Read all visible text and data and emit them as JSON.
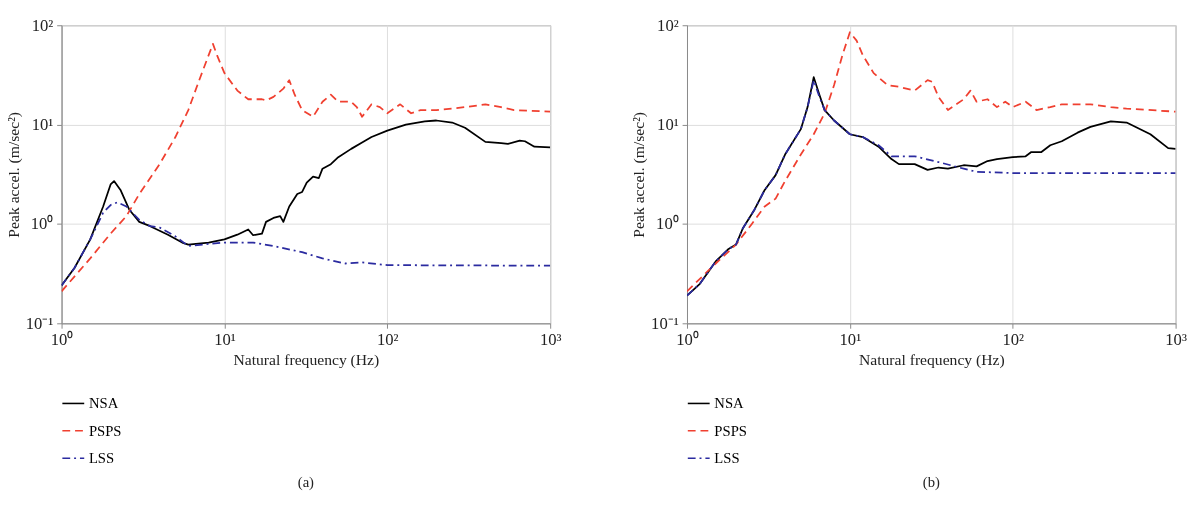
{
  "chart_data": [
    {
      "type": "line",
      "xlabel": "Natural frequency (Hz)",
      "ylabel": "Peak accel. (m/sec²)",
      "log": "xy",
      "grid": true,
      "legend": "bottom left",
      "annotations": [
        "(a)"
      ],
      "xlim": [
        1,
        1000
      ],
      "ylim": [
        0.1,
        100
      ],
      "xticks": [
        {
          "value": 1,
          "label": "10⁰"
        },
        {
          "value": 10,
          "label": "10¹"
        },
        {
          "value": 100,
          "label": "10²"
        },
        {
          "value": 1000,
          "label": "10³"
        }
      ],
      "yticks": [
        {
          "value": 0.1,
          "label": "10⁻¹"
        },
        {
          "value": 1,
          "label": "10⁰"
        },
        {
          "value": 10,
          "label": "10¹"
        },
        {
          "value": 100,
          "label": "10²"
        }
      ],
      "series": [
        {
          "name": "NSA",
          "color": "#000000",
          "line_style": "solid",
          "x": [
            1,
            1.2,
            1.5,
            1.8,
            2,
            2.1,
            2.3,
            2.6,
            3,
            3.5,
            4.5,
            5.5,
            6,
            8,
            10,
            12,
            14,
            15,
            17,
            18,
            20,
            22,
            23,
            25,
            28,
            30,
            32,
            35,
            38,
            40,
            45,
            50,
            60,
            70,
            80,
            100,
            130,
            170,
            200,
            250,
            300,
            400,
            500,
            550,
            650,
            700,
            800,
            1000
          ],
          "values": [
            0.24,
            0.36,
            0.7,
            1.5,
            2.5,
            2.7,
            2.2,
            1.4,
            1.05,
            0.95,
            0.78,
            0.65,
            0.62,
            0.65,
            0.7,
            0.78,
            0.88,
            0.77,
            0.8,
            1.05,
            1.15,
            1.2,
            1.05,
            1.5,
            2.0,
            2.1,
            2.6,
            3.0,
            2.9,
            3.6,
            4.0,
            4.7,
            5.7,
            6.6,
            7.5,
            8.7,
            10,
            10.8,
            11,
            10.5,
            9.3,
            6.7,
            6.5,
            6.4,
            6.9,
            6.8,
            6.0,
            5.9
          ]
        },
        {
          "name": "PSPS",
          "color": "#f04030",
          "line_style": "dashed",
          "x": [
            1,
            1.5,
            2,
            2.5,
            3,
            4,
            5,
            6,
            7,
            8,
            8.5,
            9,
            10,
            12,
            14,
            17,
            18,
            20,
            23,
            25,
            27,
            30,
            35,
            40,
            45,
            50,
            60,
            65,
            70,
            80,
            90,
            100,
            120,
            140,
            160,
            200,
            300,
            400,
            500,
            600,
            1000
          ],
          "values": [
            0.21,
            0.45,
            0.8,
            1.2,
            2.0,
            4.0,
            7.5,
            14,
            28,
            50,
            65,
            50,
            33,
            22,
            18,
            18,
            17.5,
            19,
            23,
            28,
            20,
            14,
            12,
            17,
            20,
            17,
            17,
            15,
            12,
            16,
            15,
            13,
            16,
            13,
            14,
            14,
            15,
            16,
            15,
            14,
            13.5
          ]
        },
        {
          "name": "LSS",
          "color": "#2b2ba0",
          "line_style": "dashdot",
          "x": [
            1,
            1.2,
            1.5,
            1.8,
            2,
            2.2,
            2.5,
            3,
            3.5,
            4,
            5,
            6,
            8,
            10,
            15,
            20,
            30,
            40,
            55,
            70,
            100,
            1000
          ],
          "values": [
            0.24,
            0.36,
            0.7,
            1.3,
            1.55,
            1.65,
            1.5,
            1.1,
            0.95,
            0.92,
            0.75,
            0.6,
            0.63,
            0.65,
            0.65,
            0.6,
            0.52,
            0.45,
            0.4,
            0.41,
            0.385,
            0.38
          ]
        }
      ]
    },
    {
      "type": "line",
      "xlabel": "Natural frequency (Hz)",
      "ylabel": "Peak accel. (m/sec²)",
      "log": "xy",
      "grid": true,
      "legend": "bottom left",
      "annotations": [
        "(b)"
      ],
      "xlim": [
        1,
        1000
      ],
      "ylim": [
        0.1,
        100
      ],
      "xticks": [
        {
          "value": 1,
          "label": "10⁰"
        },
        {
          "value": 10,
          "label": "10¹"
        },
        {
          "value": 100,
          "label": "10²"
        },
        {
          "value": 1000,
          "label": "10³"
        }
      ],
      "yticks": [
        {
          "value": 0.1,
          "label": "10⁻¹"
        },
        {
          "value": 1,
          "label": "10⁰"
        },
        {
          "value": 10,
          "label": "10¹"
        },
        {
          "value": 100,
          "label": "10²"
        }
      ],
      "series": [
        {
          "name": "NSA",
          "color": "#000000",
          "line_style": "solid",
          "x": [
            1,
            1.2,
            1.5,
            1.8,
            2,
            2.2,
            2.6,
            3,
            3.5,
            4,
            5,
            5.5,
            6,
            6.5,
            7,
            8,
            10,
            12,
            15,
            18,
            20,
            25,
            30,
            35,
            40,
            50,
            60,
            70,
            80,
            100,
            120,
            130,
            150,
            170,
            200,
            250,
            300,
            400,
            500,
            700,
            900,
            1000
          ],
          "values": [
            0.19,
            0.25,
            0.42,
            0.56,
            0.62,
            0.9,
            1.4,
            2.2,
            3.1,
            5,
            9,
            15,
            30,
            20,
            14,
            11,
            8,
            7.5,
            6,
            4.5,
            4.0,
            4.0,
            3.5,
            3.7,
            3.6,
            3.9,
            3.8,
            4.3,
            4.5,
            4.7,
            4.8,
            5.3,
            5.3,
            6.2,
            6.8,
            8.3,
            9.5,
            10.8,
            10.5,
            8,
            5.8,
            5.7
          ]
        },
        {
          "name": "PSPS",
          "color": "#f04030",
          "line_style": "dashed",
          "x": [
            1,
            1.5,
            2,
            2.5,
            3,
            3.5,
            4,
            5,
            6,
            7,
            8,
            9,
            10,
            11,
            12,
            14,
            17,
            20,
            25,
            30,
            32,
            35,
            40,
            50,
            55,
            60,
            70,
            80,
            90,
            100,
            120,
            140,
            170,
            200,
            300,
            400,
            500,
            1000
          ],
          "values": [
            0.21,
            0.4,
            0.62,
            1.0,
            1.5,
            1.8,
            2.7,
            5,
            8,
            13,
            25,
            50,
            85,
            70,
            50,
            33,
            25,
            24,
            22,
            28,
            27,
            19,
            14,
            18,
            22,
            17,
            18,
            15,
            17,
            15,
            17,
            14,
            15,
            16,
            16,
            15,
            14.5,
            13.5
          ]
        },
        {
          "name": "LSS",
          "color": "#2b2ba0",
          "line_style": "dashdot",
          "x": [
            1,
            1.2,
            1.5,
            1.8,
            2,
            2.2,
            2.6,
            3,
            3.5,
            4,
            5,
            5.5,
            6,
            6.5,
            7,
            8,
            10,
            12,
            15,
            18,
            25,
            35,
            50,
            60,
            100,
            1000
          ],
          "values": [
            0.19,
            0.25,
            0.42,
            0.56,
            0.62,
            0.9,
            1.4,
            2.2,
            3.1,
            5,
            9,
            15,
            28,
            19,
            14,
            11,
            8,
            7.5,
            6.2,
            4.8,
            4.8,
            4.2,
            3.6,
            3.35,
            3.25,
            3.25
          ]
        }
      ]
    }
  ]
}
